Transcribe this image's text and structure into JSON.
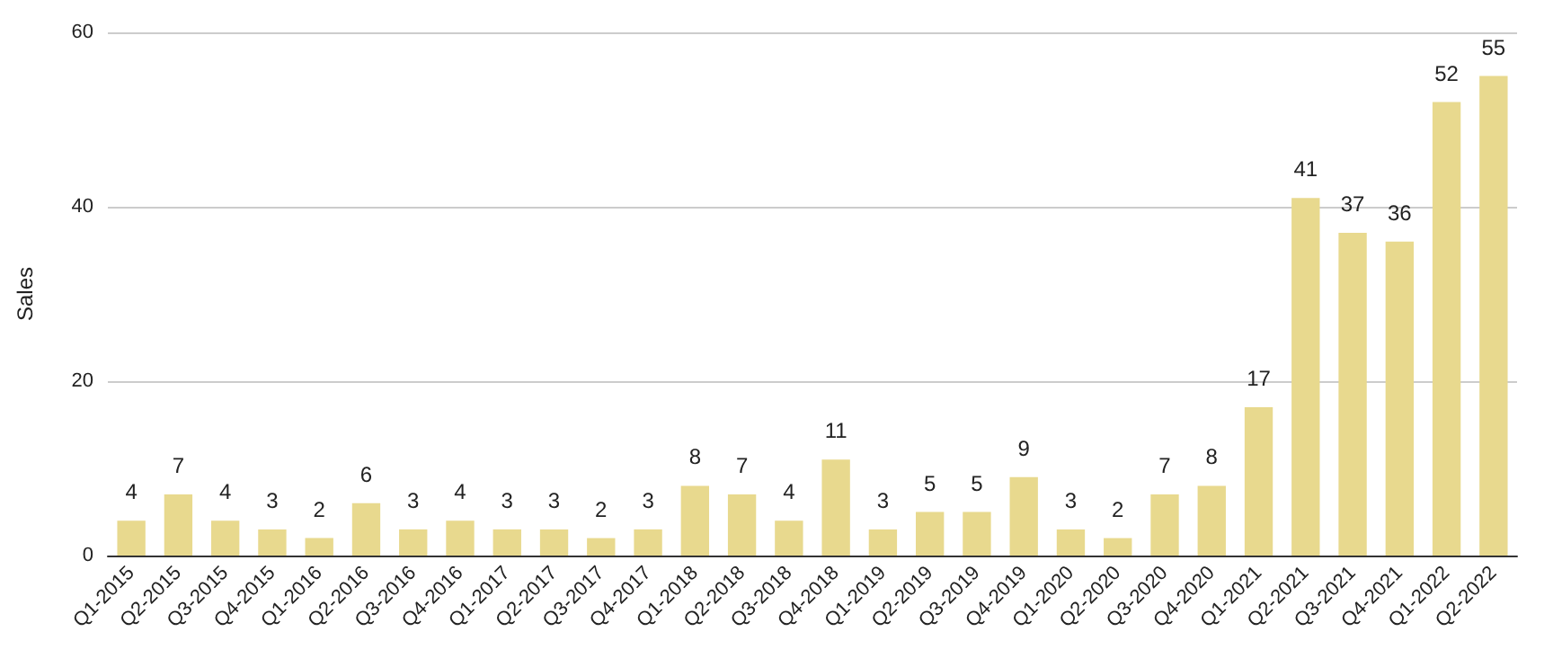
{
  "chart_data": {
    "type": "bar",
    "ylabel": "Sales",
    "categories": [
      "Q1-2015",
      "Q2-2015",
      "Q3-2015",
      "Q4-2015",
      "Q1-2016",
      "Q2-2016",
      "Q3-2016",
      "Q4-2016",
      "Q1-2017",
      "Q2-2017",
      "Q3-2017",
      "Q4-2017",
      "Q1-2018",
      "Q2-2018",
      "Q3-2018",
      "Q4-2018",
      "Q1-2019",
      "Q2-2019",
      "Q3-2019",
      "Q4-2019",
      "Q1-2020",
      "Q2-2020",
      "Q3-2020",
      "Q4-2020",
      "Q1-2021",
      "Q2-2021",
      "Q3-2021",
      "Q4-2021",
      "Q1-2022",
      "Q2-2022"
    ],
    "values": [
      4,
      7,
      4,
      3,
      2,
      6,
      3,
      4,
      3,
      3,
      2,
      3,
      8,
      7,
      4,
      11,
      3,
      5,
      5,
      9,
      3,
      2,
      7,
      8,
      17,
      41,
      37,
      36,
      52,
      55
    ],
    "color": "#e8d98e",
    "ylim": [
      0,
      60
    ],
    "yticks": [
      0,
      20,
      40,
      60
    ],
    "grid": "y",
    "data_labels": true
  }
}
